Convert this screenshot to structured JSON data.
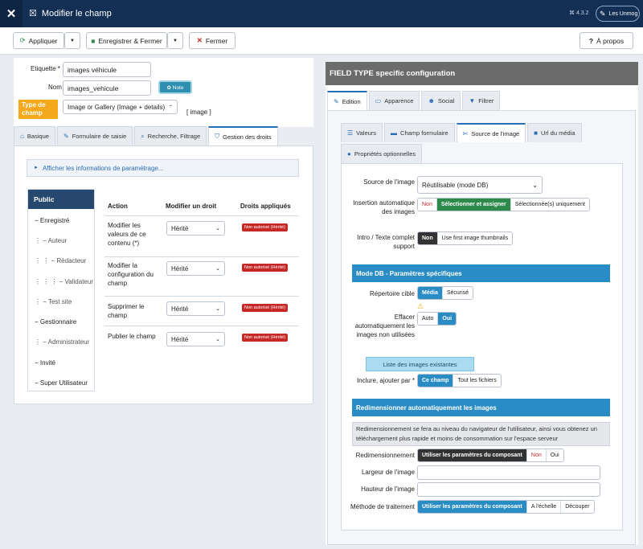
{
  "app": {
    "logo": "joomla-icon",
    "title": "Modifier le champ",
    "version": "⌘ 4.3.2",
    "user": "Les Unmog"
  },
  "toolbar": {
    "apply": "Appliquer",
    "save_close": "Enregistrer & Fermer",
    "close": "Fermer",
    "help": "À propos"
  },
  "form": {
    "label_caption": "Etiquette *",
    "label_value": "images véhicule",
    "name_caption": "Nom",
    "name_value": "images_vehicule",
    "note": "✿ Note",
    "type_caption": "Type de champ",
    "type_value": "Image or Gallery (Image + details)",
    "type_tag": "[ image ]"
  },
  "left_tabs": [
    "Basique",
    "Formulaire de saisie",
    "Recherche, Filtrage",
    "Gestion des droits"
  ],
  "perm": {
    "info": "Afficher les informations de paramétrage...",
    "groups": [
      "Public",
      "− Enregistré",
      "⋮ − Auteur",
      "⋮ ⋮ − Rédacteur",
      "⋮ ⋮ ⋮ − Validateur",
      "⋮ − Test site",
      "− Gestionnaire",
      "⋮ − Administrateur",
      "− Invité",
      "− Super Utilisateur"
    ],
    "headers": [
      "Action",
      "Modifier un droit",
      "Droits appliqués"
    ],
    "rows": [
      {
        "action": "Modifier les valeurs de ce contenu (*)",
        "value": "Hérité",
        "applied": "Non autorisé (Hérité)"
      },
      {
        "action": "Modifier la configuration du champ",
        "value": "Hérité",
        "applied": "Non autorisé (Hérité)"
      },
      {
        "action": "Supprimer le champ",
        "value": "Hérité",
        "applied": "Non autorisé (Hérité)"
      },
      {
        "action": "Publier le champ",
        "value": "Hérité",
        "applied": "Non autorisé (Hérité)"
      }
    ]
  },
  "right": {
    "header": "FIELD TYPE specific configuration",
    "tabs": [
      "Edition",
      "Apparence",
      "Social",
      "Filtrer"
    ],
    "subtabs": [
      "Valeurs",
      "Champ formulaire",
      "Source de l'image",
      "Url du média",
      "Propriétés optionnelles"
    ],
    "source_label": "Source de l'image",
    "source_value": "Réutilisable (mode DB)",
    "insert_label": "Insertion automatique des images",
    "insert_opts": [
      "Non",
      "Sélectionner et assigner",
      "Sélectionnée(s) uniquement"
    ],
    "intro_label": "Intro / Texte complet support",
    "intro_opts": [
      "Non",
      "Use first image thumbnails"
    ],
    "db_section": "Mode DB - Paramètres spécifiques",
    "dir_label": "Répertoire cible",
    "dir_opts": [
      "Média",
      "Sécurisé"
    ],
    "warn": "⚠",
    "autodel_label": "Effacer automatiquement les images non utilisées",
    "autodel_opts": [
      "Auto",
      "Oui"
    ],
    "list_btn": "Liste des images existantes",
    "include_label": "Inclure, ajouter par *",
    "include_opts": [
      "Ce champ",
      "Tout les fichiers"
    ],
    "resize_section": "Redimensionner automatiquement les images",
    "resize_info": "Redimensionnement se fera au niveau du navigateur de l'utilisateur, ainsi vous obtenez un téléchargement plus rapide et moins de consommation sur l'espace serveur",
    "resize_label": "Redimensionnement",
    "resize_opts": [
      "Utiliser les paramètres du composant",
      "Non",
      "Oui"
    ],
    "width_label": "Largeur de l'image",
    "height_label": "Hauteur de l'image",
    "method_label": "Méthode de traitement",
    "method_opts": [
      "Utiliser les paramètres du composant",
      "A l'échelle",
      "Découper"
    ]
  }
}
